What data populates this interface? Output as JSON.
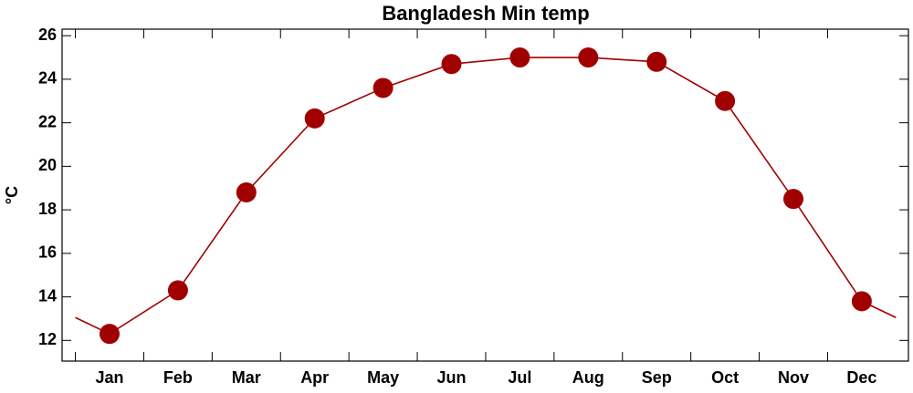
{
  "chart_data": {
    "type": "line",
    "title": "Bangladesh Min temp",
    "ylabel": "°C",
    "categories": [
      "Jan",
      "Feb",
      "Mar",
      "Apr",
      "May",
      "Jun",
      "Jul",
      "Aug",
      "Sep",
      "Oct",
      "Nov",
      "Dec"
    ],
    "series": [
      {
        "name": "Min temp",
        "color": "#a00000",
        "values": [
          12.3,
          14.3,
          18.8,
          22.2,
          23.6,
          24.7,
          25.0,
          25.0,
          24.8,
          23.0,
          18.5,
          13.8
        ]
      }
    ],
    "ylim": [
      11.05,
      26.3
    ],
    "yticks": [
      12,
      14,
      16,
      18,
      20,
      22,
      24,
      26
    ]
  }
}
